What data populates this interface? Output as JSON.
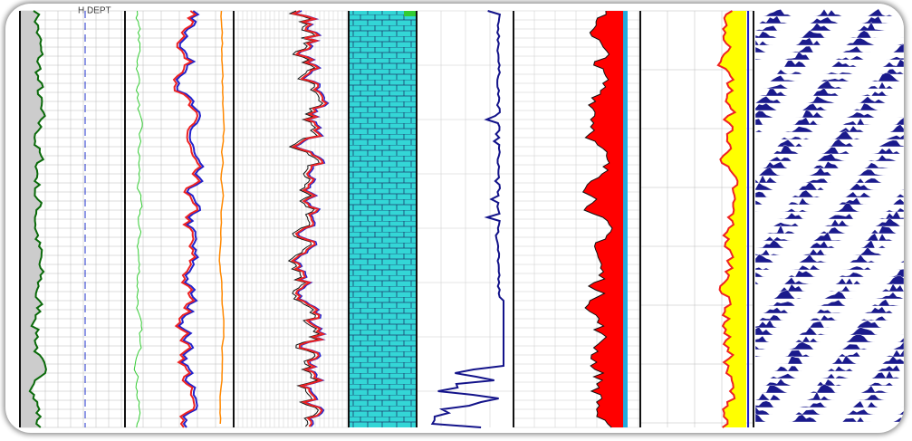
{
  "header": {
    "label": "H DEPT"
  }
}
